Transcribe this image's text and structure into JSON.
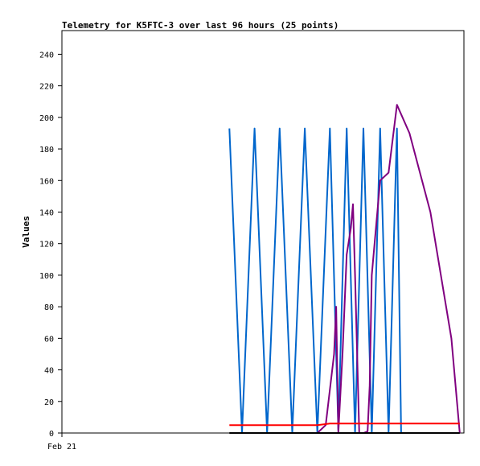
{
  "chart_data": {
    "type": "line",
    "title": "Telemetry for K5FTC-3 over last 96 hours (25 points)",
    "xlabel": "",
    "ylabel": "Values",
    "x_tick_labels": [
      "Feb 21"
    ],
    "y_ticks": [
      0,
      20,
      40,
      60,
      80,
      100,
      120,
      140,
      160,
      180,
      200,
      220,
      240
    ],
    "ylim": [
      0,
      255
    ],
    "xlim": [
      0,
      96
    ],
    "grid": false,
    "legend": "none",
    "series": [
      {
        "color": "#0066cc",
        "x": [
          40,
          43,
          46,
          49,
          52,
          55,
          58,
          61,
          64,
          66,
          68,
          70,
          72,
          74,
          76,
          78,
          80,
          81
        ],
        "y": [
          193,
          0,
          193,
          0,
          193,
          0,
          193,
          0,
          193,
          2,
          193,
          0,
          193,
          0,
          193,
          0,
          193,
          0
        ]
      },
      {
        "color": "#800080",
        "x": [
          61,
          63,
          65,
          65.5,
          66,
          67,
          68,
          69,
          69.5,
          70,
          71,
          72,
          73,
          73.5,
          74,
          76,
          78,
          80,
          83,
          88,
          93,
          95
        ],
        "y": [
          0,
          5,
          50,
          80,
          0,
          50,
          113,
          130,
          145,
          100,
          0,
          0,
          1,
          30,
          100,
          160,
          165,
          208,
          190,
          140,
          60,
          0
        ]
      },
      {
        "color": "#ff0000",
        "x": [
          40,
          61,
          64,
          95
        ],
        "y": [
          5,
          5,
          6,
          6
        ]
      },
      {
        "color": "#000000",
        "x": [
          40,
          95
        ],
        "y": [
          0,
          0
        ]
      }
    ]
  }
}
